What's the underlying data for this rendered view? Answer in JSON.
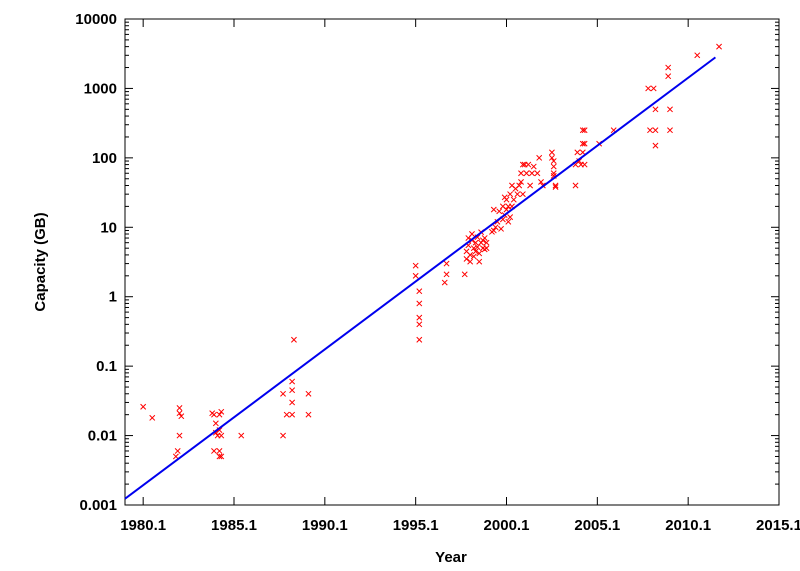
{
  "chart_data": {
    "type": "scatter",
    "xlabel": "Year",
    "ylabel": "Capacity (GB)",
    "y_scale": "log",
    "xlim": [
      1979.1,
      2015.1
    ],
    "ylim": [
      0.001,
      10000
    ],
    "x_ticks": [
      "1980.1",
      "1985.1",
      "1990.1",
      "1995.1",
      "2000.1",
      "2005.1",
      "2010.1",
      "2015.1"
    ],
    "x_tick_values": [
      1980.1,
      1985.1,
      1990.1,
      1995.1,
      2000.1,
      2005.1,
      2010.1,
      2015.1
    ],
    "y_ticks": [
      "0.001",
      "0.01",
      "0.1",
      "1",
      "10",
      "100",
      "1000",
      "10000"
    ],
    "y_tick_values": [
      0.001,
      0.01,
      0.1,
      1,
      10,
      100,
      1000,
      10000
    ],
    "grid": false,
    "legend": "none",
    "series": [
      {
        "kind": "points",
        "color": "#ff0000",
        "marker": "x",
        "points": [
          [
            1980.1,
            0.026
          ],
          [
            1980.6,
            0.018
          ],
          [
            1981.9,
            0.005
          ],
          [
            1982.0,
            0.006
          ],
          [
            1982.1,
            0.025
          ],
          [
            1982.1,
            0.021
          ],
          [
            1982.1,
            0.01
          ],
          [
            1982.2,
            0.019
          ],
          [
            1983.9,
            0.021
          ],
          [
            1984.0,
            0.02
          ],
          [
            1984.1,
            0.015
          ],
          [
            1984.0,
            0.006
          ],
          [
            1984.1,
            0.011
          ],
          [
            1984.2,
            0.01
          ],
          [
            1984.3,
            0.02
          ],
          [
            1984.3,
            0.012
          ],
          [
            1984.3,
            0.006
          ],
          [
            1984.3,
            0.005
          ],
          [
            1984.4,
            0.022
          ],
          [
            1984.4,
            0.01
          ],
          [
            1984.4,
            0.005
          ],
          [
            1985.5,
            0.01
          ],
          [
            1987.8,
            0.01
          ],
          [
            1987.8,
            0.04
          ],
          [
            1988.0,
            0.02
          ],
          [
            1988.3,
            0.06
          ],
          [
            1988.3,
            0.045
          ],
          [
            1988.3,
            0.03
          ],
          [
            1988.3,
            0.02
          ],
          [
            1988.4,
            0.24
          ],
          [
            1989.2,
            0.04
          ],
          [
            1989.2,
            0.02
          ],
          [
            1995.1,
            2.8
          ],
          [
            1995.1,
            2.0
          ],
          [
            1995.3,
            1.2
          ],
          [
            1995.3,
            0.8
          ],
          [
            1995.3,
            0.5
          ],
          [
            1995.3,
            0.4
          ],
          [
            1995.3,
            0.24
          ],
          [
            1996.7,
            1.6
          ],
          [
            1996.8,
            2.1
          ],
          [
            1996.8,
            3.0
          ],
          [
            1997.8,
            2.1
          ],
          [
            1997.9,
            3.5
          ],
          [
            1997.9,
            4.5
          ],
          [
            1998.0,
            5.5
          ],
          [
            1998.0,
            7.0
          ],
          [
            1998.1,
            3.2
          ],
          [
            1998.1,
            4.0
          ],
          [
            1998.2,
            6.5
          ],
          [
            1998.2,
            8.0
          ],
          [
            1998.3,
            5.0
          ],
          [
            1998.3,
            3.8
          ],
          [
            1998.4,
            4.5
          ],
          [
            1998.4,
            6.0
          ],
          [
            1998.5,
            7.2
          ],
          [
            1998.5,
            5.2
          ],
          [
            1998.6,
            3.2
          ],
          [
            1998.6,
            4.2
          ],
          [
            1998.7,
            6.0
          ],
          [
            1998.7,
            8.5
          ],
          [
            1998.8,
            5.0
          ],
          [
            1998.8,
            6.5
          ],
          [
            1998.9,
            4.8
          ],
          [
            1998.9,
            7.0
          ],
          [
            1999.0,
            6.0
          ],
          [
            1999.0,
            5.0
          ],
          [
            1999.3,
            8.6
          ],
          [
            1999.4,
            9.0
          ],
          [
            1999.4,
            18.0
          ],
          [
            1999.5,
            10.0
          ],
          [
            1999.6,
            12.0
          ],
          [
            1999.7,
            17.0
          ],
          [
            1999.8,
            9.5
          ],
          [
            1999.9,
            13.0
          ],
          [
            1999.9,
            20.0
          ],
          [
            2000.0,
            27.0
          ],
          [
            2000.0,
            15.0
          ],
          [
            2000.1,
            18.0
          ],
          [
            2000.1,
            25.0
          ],
          [
            2000.2,
            12.0
          ],
          [
            2000.2,
            20.0
          ],
          [
            2000.3,
            30.0
          ],
          [
            2000.3,
            14.0
          ],
          [
            2000.4,
            20.0
          ],
          [
            2000.4,
            40.0
          ],
          [
            2000.5,
            25.0
          ],
          [
            2000.6,
            36.0
          ],
          [
            2000.7,
            30.0
          ],
          [
            2000.8,
            40.0
          ],
          [
            2000.9,
            45.0
          ],
          [
            2000.9,
            60.0
          ],
          [
            2001.0,
            80.0
          ],
          [
            2001.0,
            30.0
          ],
          [
            2001.1,
            80.0
          ],
          [
            2001.2,
            60.0
          ],
          [
            2001.3,
            80.0
          ],
          [
            2001.4,
            40.0
          ],
          [
            2001.5,
            60.0
          ],
          [
            2001.6,
            75.0
          ],
          [
            2001.8,
            60.0
          ],
          [
            2001.9,
            100.0
          ],
          [
            2002.0,
            45.0
          ],
          [
            2002.1,
            40.0
          ],
          [
            2002.6,
            120.0
          ],
          [
            2002.6,
            100.0
          ],
          [
            2002.7,
            90.0
          ],
          [
            2002.7,
            75.0
          ],
          [
            2002.7,
            60.0
          ],
          [
            2002.7,
            55.0
          ],
          [
            2002.8,
            40.0
          ],
          [
            2002.8,
            38.0
          ],
          [
            2003.9,
            40.0
          ],
          [
            2003.9,
            80.0
          ],
          [
            2004.0,
            120.0
          ],
          [
            2004.1,
            90.0
          ],
          [
            2004.2,
            80.0
          ],
          [
            2004.3,
            120.0
          ],
          [
            2004.3,
            160.0
          ],
          [
            2004.3,
            250.0
          ],
          [
            2004.4,
            250.0
          ],
          [
            2004.4,
            160.0
          ],
          [
            2004.4,
            80.0
          ],
          [
            2005.2,
            160.0
          ],
          [
            2006.0,
            250.0
          ],
          [
            2007.9,
            1000.0
          ],
          [
            2008.0,
            250.0
          ],
          [
            2008.2,
            1000.0
          ],
          [
            2008.3,
            500.0
          ],
          [
            2008.3,
            250.0
          ],
          [
            2008.3,
            150.0
          ],
          [
            2009.0,
            2000.0
          ],
          [
            2009.0,
            1500.0
          ],
          [
            2009.1,
            500.0
          ],
          [
            2009.1,
            250.0
          ],
          [
            2010.6,
            3000.0
          ],
          [
            2011.8,
            4000.0
          ]
        ]
      },
      {
        "kind": "line",
        "color": "#0000ee",
        "points": [
          [
            1979.1,
            0.00123
          ],
          [
            2011.6,
            2800.0
          ]
        ]
      }
    ]
  }
}
